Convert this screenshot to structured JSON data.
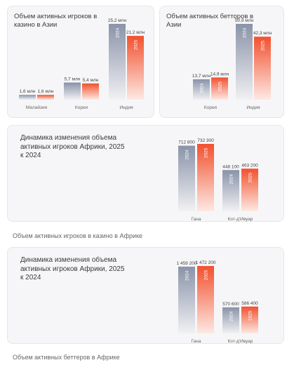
{
  "chart_data": [
    {
      "id": "asia-casino",
      "type": "bar",
      "title": "Объем активных игроков в казино в Азии",
      "categories": [
        "Малайзия",
        "Корея",
        "Индия"
      ],
      "series": [
        {
          "name": "2024",
          "values": [
            1.6,
            5.7,
            25.2
          ],
          "labels": [
            "1,6 млн",
            "5,7 млн",
            "25,2 млн"
          ]
        },
        {
          "name": "2025",
          "values": [
            1.6,
            5.4,
            21.2
          ],
          "labels": [
            "1,6 млн",
            "5,4 млн",
            "21,2 млн"
          ]
        }
      ],
      "ylim": [
        0,
        25.2
      ]
    },
    {
      "id": "asia-betting",
      "type": "bar",
      "title": "Объем активных бетторов в Азии",
      "categories": [
        "Корея",
        "Индия"
      ],
      "series": [
        {
          "name": "2024",
          "values": [
            13.7,
            50.9
          ],
          "labels": [
            "13,7 млн",
            "50,9 млн"
          ]
        },
        {
          "name": "2025",
          "values": [
            14.9,
            42.3
          ],
          "labels": [
            "14,9 млн",
            "42,3 млн"
          ]
        }
      ],
      "ylim": [
        0,
        50.9
      ]
    },
    {
      "id": "africa-casino",
      "type": "bar",
      "title": "Динамика изменения объема активных игроков Африки, 2025 к 2024",
      "categories": [
        "Гана",
        "Кот-д'Ивуар"
      ],
      "series": [
        {
          "name": "2024",
          "values": [
            712800,
            448100
          ],
          "labels": [
            "712 800",
            "448 100"
          ]
        },
        {
          "name": "2025",
          "values": [
            732300,
            463200
          ],
          "labels": [
            "732 300",
            "463 200"
          ]
        }
      ],
      "ylim": [
        0,
        732300
      ]
    },
    {
      "id": "africa-betting",
      "type": "bar",
      "title": "Динамика изменения объема активных игроков Африки, 2025 к 2024",
      "categories": [
        "Гана",
        "Кот-д'Ивуар"
      ],
      "series": [
        {
          "name": "2024",
          "values": [
            1459200,
            570600
          ],
          "labels": [
            "1 459 200",
            "570 600"
          ]
        },
        {
          "name": "2025",
          "values": [
            1472200,
            586400
          ],
          "labels": [
            "1 472 200",
            "586 400"
          ]
        }
      ],
      "ylim": [
        0,
        1472200
      ]
    }
  ],
  "captions": {
    "casino_africa": "Объем активных игроков в казино в Африке",
    "betting_africa": "Объем активных беттеров в Африке"
  },
  "colors": {
    "bar_2024_top": "#8a93a8",
    "bar_2024_bottom": "#f1f1f4",
    "bar_2025_top": "#f2512f",
    "bar_2025_bottom": "#fde9e3",
    "value_label": "#444444",
    "category_label": "#666666"
  }
}
